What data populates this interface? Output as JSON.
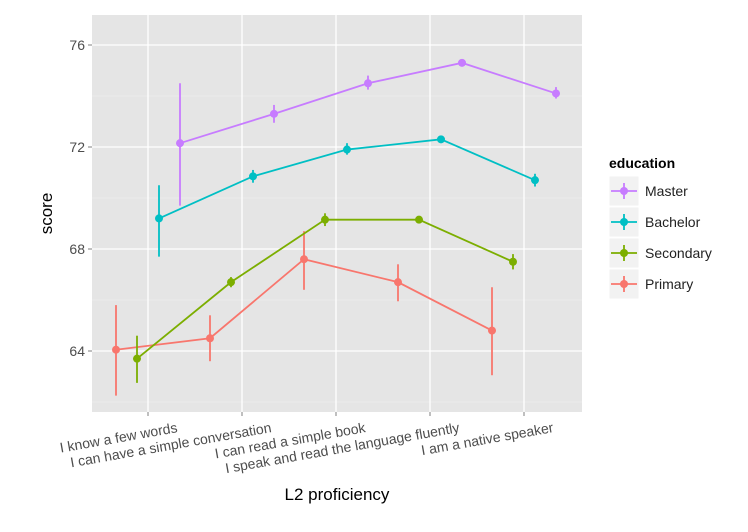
{
  "chart_data": {
    "type": "line",
    "title": "",
    "xlabel": "L2 proficiency",
    "ylabel": "score",
    "ylim": [
      61.8,
      77.2
    ],
    "yticks": [
      64,
      68,
      72,
      76
    ],
    "categories": [
      "I know a few words",
      "I can have a simple conversation",
      "I can read a simple book",
      "I speak and read the language fluently",
      "I am a native speaker"
    ],
    "legend": {
      "title": "education",
      "placement": "right"
    },
    "grid": true,
    "series": [
      {
        "name": "Master",
        "color": "#C77CFF",
        "values": [
          72.15,
          73.3,
          74.5,
          75.3,
          74.1
        ],
        "lower": [
          69.7,
          72.95,
          74.25,
          75.2,
          73.9
        ],
        "upper": [
          74.5,
          73.65,
          74.8,
          75.4,
          74.35
        ]
      },
      {
        "name": "Bachelor",
        "color": "#00BFC4",
        "values": [
          69.2,
          70.85,
          71.9,
          72.3,
          70.7
        ],
        "lower": [
          67.7,
          70.6,
          71.7,
          72.2,
          70.45
        ],
        "upper": [
          70.5,
          71.1,
          72.15,
          72.4,
          70.95
        ]
      },
      {
        "name": "Secondary",
        "color": "#7CAE00",
        "values": [
          63.7,
          66.7,
          69.15,
          69.15,
          67.5
        ],
        "lower": [
          62.75,
          66.5,
          68.9,
          69.05,
          67.2
        ],
        "upper": [
          64.6,
          66.9,
          69.4,
          69.25,
          67.8
        ]
      },
      {
        "name": "Primary",
        "color": "#F8766D",
        "values": [
          64.05,
          64.5,
          67.6,
          66.7,
          64.8
        ],
        "lower": [
          62.25,
          63.6,
          66.4,
          65.95,
          63.05
        ],
        "upper": [
          65.8,
          65.4,
          68.7,
          67.4,
          66.5
        ]
      }
    ]
  }
}
